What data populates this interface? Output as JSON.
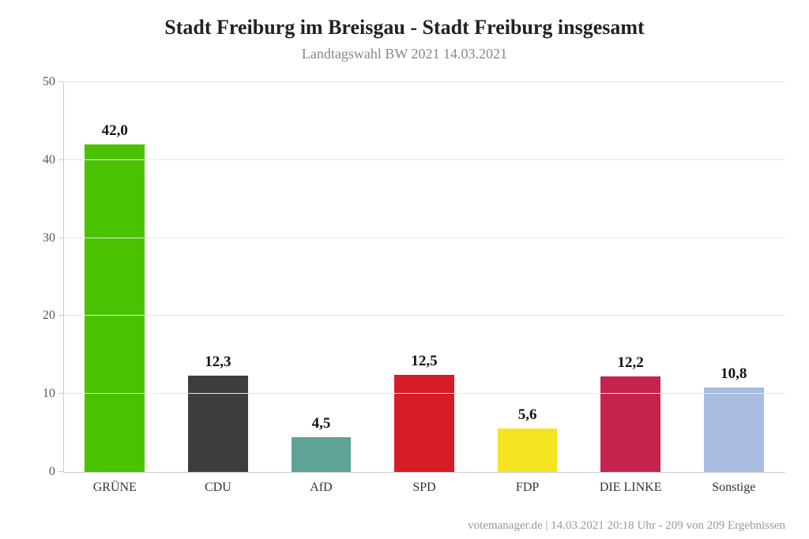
{
  "chart": {
    "type": "bar",
    "title": "Stadt Freiburg im Breisgau - Stadt Freiburg insgesamt",
    "title_fontsize": 26,
    "title_weight": "bold",
    "title_color": "#222222",
    "subtitle": "Landtagswahl BW 2021 14.03.2021",
    "subtitle_fontsize": 18,
    "subtitle_color": "#888888",
    "background_color": "#ffffff",
    "grid_color": "#e6e6e6",
    "axis_color": "#cccccc",
    "ylim": [
      0,
      50
    ],
    "yticks": [
      0,
      10,
      20,
      30,
      40,
      50
    ],
    "tick_fontsize": 16,
    "tick_color": "#555555",
    "bar_width_pct": 58,
    "value_label_fontsize": 19,
    "value_label_weight": "bold",
    "xlabel_fontsize": 16,
    "xlabel_color": "#333333",
    "footer": "votemanager.de | 14.03.2021 20:18 Uhr - 209 von 209 Ergebnissen",
    "footer_fontsize": 15,
    "footer_color": "#999999",
    "series": [
      {
        "label": "GRÜNE",
        "value": 42.0,
        "value_label": "42,0",
        "color": "#4bc200"
      },
      {
        "label": "CDU",
        "value": 12.3,
        "value_label": "12,3",
        "color": "#3d3d3d"
      },
      {
        "label": "AfD",
        "value": 4.5,
        "value_label": "4,5",
        "color": "#5fa397"
      },
      {
        "label": "SPD",
        "value": 12.5,
        "value_label": "12,5",
        "color": "#d61c27"
      },
      {
        "label": "FDP",
        "value": 5.6,
        "value_label": "5,6",
        "color": "#f5e422"
      },
      {
        "label": "DIE LINKE",
        "value": 12.2,
        "value_label": "12,2",
        "color": "#c5234d"
      },
      {
        "label": "Sonstige",
        "value": 10.8,
        "value_label": "10,8",
        "color": "#a9bde0"
      }
    ]
  }
}
